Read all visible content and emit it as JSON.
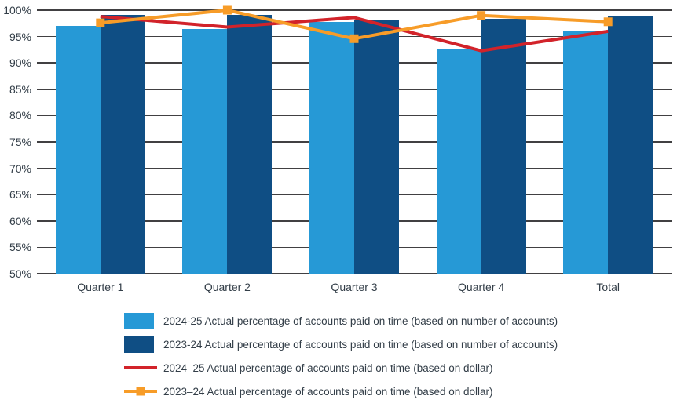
{
  "chart_data": {
    "type": "bar",
    "subtype": "grouped bars with two overlaid line series",
    "title": "",
    "categories": [
      "Quarter 1",
      "Quarter 2",
      "Quarter 3",
      "Quarter 4",
      "Total"
    ],
    "series": [
      {
        "name": "2024-25 Actual percentage of accounts paid on time (based on number of accounts)",
        "type": "bar",
        "color": "#2699d6",
        "values": [
          97.0,
          96.5,
          97.7,
          92.5,
          96.2
        ]
      },
      {
        "name": "2023-24 Actual percentage of accounts paid on time (based on number of accounts)",
        "type": "bar",
        "color": "#0f4e84",
        "values": [
          99.1,
          99.1,
          98.1,
          98.3,
          98.8
        ]
      },
      {
        "name": "2024–25 Actual percentage of accounts paid on time (based on dollar)",
        "type": "line",
        "marker": "none",
        "color": "#d2232a",
        "values": [
          98.8,
          96.8,
          98.6,
          92.3,
          96.0
        ]
      },
      {
        "name": "2023–24 Actual percentage of accounts paid on time (based on dollar)",
        "type": "line",
        "marker": "square",
        "color": "#f79c28",
        "values": [
          97.6,
          100.0,
          94.6,
          99.0,
          97.8
        ]
      }
    ],
    "ylim": [
      50,
      100
    ],
    "ytick_labels": [
      "100%",
      "95%",
      "90%",
      "85%",
      "80%",
      "75%",
      "70%",
      "65%",
      "60%",
      "55%",
      "50%"
    ],
    "ytick_values": [
      100,
      95,
      90,
      85,
      80,
      75,
      70,
      65,
      60,
      55,
      50
    ],
    "xlabel": "",
    "ylabel": "",
    "grid": true,
    "legend_position": "bottom"
  },
  "colors": {
    "gridline": "#414042",
    "axis_text": "#333e48"
  }
}
